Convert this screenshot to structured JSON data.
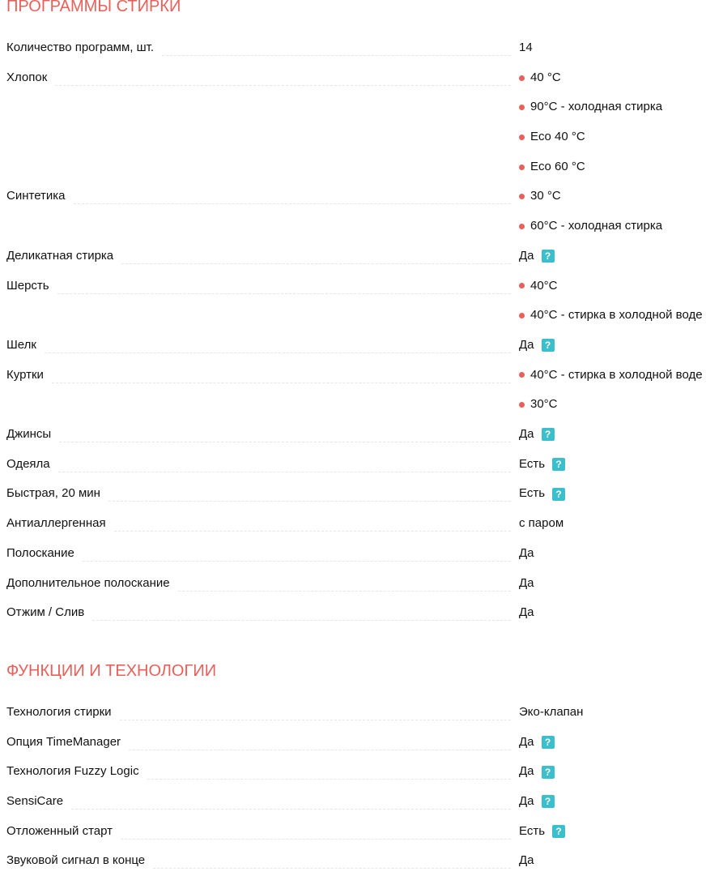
{
  "sections": [
    {
      "title": "ПРОГРАММЫ СТИРКИ",
      "rows": [
        {
          "label": "Количество программ, шт.",
          "values": [
            "14"
          ],
          "bullets": false,
          "help": false
        },
        {
          "label": "Хлопок",
          "values": [
            "40 °C",
            "90°C - холодная стирка",
            "Eco 40 °C",
            "Eco 60 °C"
          ],
          "bullets": true,
          "help": false
        },
        {
          "label": "Синтетика",
          "values": [
            "30 °C",
            "60°C - холодная стирка"
          ],
          "bullets": true,
          "help": false
        },
        {
          "label": "Деликатная стирка",
          "values": [
            "Да"
          ],
          "bullets": false,
          "help": true
        },
        {
          "label": "Шерсть",
          "values": [
            "40°C",
            "40°C - стирка в холодной воде"
          ],
          "bullets": true,
          "help": false
        },
        {
          "label": "Шелк",
          "values": [
            "Да"
          ],
          "bullets": false,
          "help": true
        },
        {
          "label": "Куртки",
          "values": [
            "40°C - стирка в холодной воде",
            "30°C"
          ],
          "bullets": true,
          "help": false
        },
        {
          "label": "Джинсы",
          "values": [
            "Да"
          ],
          "bullets": false,
          "help": true
        },
        {
          "label": "Одеяла",
          "values": [
            "Есть"
          ],
          "bullets": false,
          "help": true
        },
        {
          "label": "Быстрая, 20 мин",
          "values": [
            "Есть"
          ],
          "bullets": false,
          "help": true
        },
        {
          "label": "Антиаллергенная",
          "values": [
            "с паром"
          ],
          "bullets": false,
          "help": false
        },
        {
          "label": "Полоскание",
          "values": [
            "Да"
          ],
          "bullets": false,
          "help": false
        },
        {
          "label": "Дополнительное полоскание",
          "values": [
            "Да"
          ],
          "bullets": false,
          "help": false
        },
        {
          "label": "Отжим / Слив",
          "values": [
            "Да"
          ],
          "bullets": false,
          "help": false
        }
      ]
    },
    {
      "title": "ФУНКЦИИ И ТЕХНОЛОГИИ",
      "rows": [
        {
          "label": "Технология стирки",
          "values": [
            "Эко-клапан"
          ],
          "bullets": false,
          "help": false
        },
        {
          "label": "Опция TimeManager",
          "values": [
            "Да"
          ],
          "bullets": false,
          "help": true
        },
        {
          "label": "Технология Fuzzy Logic",
          "values": [
            "Да"
          ],
          "bullets": false,
          "help": true
        },
        {
          "label": "SensiCare",
          "values": [
            "Да"
          ],
          "bullets": false,
          "help": true
        },
        {
          "label": "Отложенный старт",
          "values": [
            "Есть"
          ],
          "bullets": false,
          "help": true
        },
        {
          "label": "Звуковой сигнал в конце",
          "values": [
            "Да"
          ],
          "bullets": false,
          "help": false
        }
      ]
    }
  ],
  "help_glyph": "?",
  "colors": {
    "accent": "#e8605a",
    "help": "#3bbfcc"
  }
}
